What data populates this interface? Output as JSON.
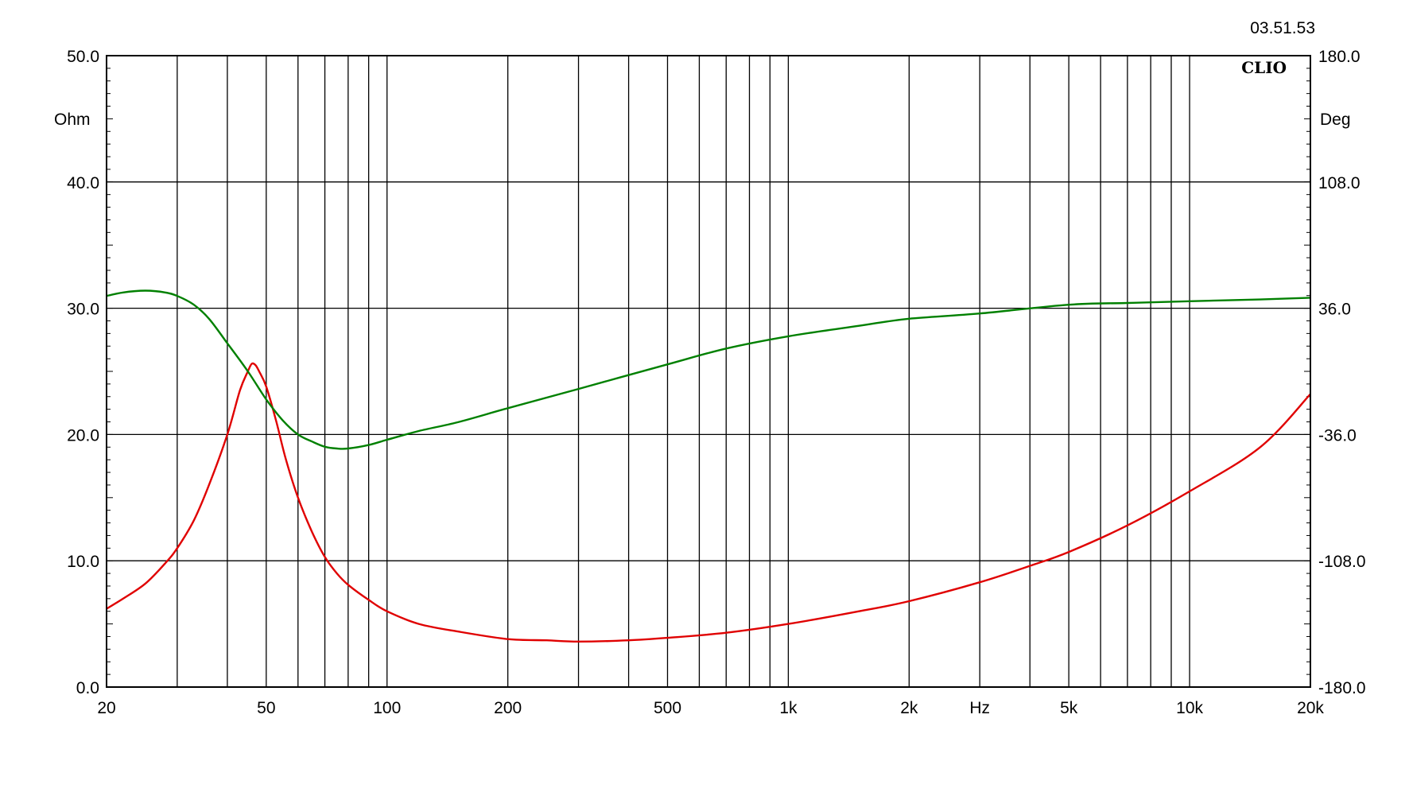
{
  "timestamp": "03.51.53",
  "logo": "CLIO",
  "chart_data": {
    "type": "line",
    "x_scale": "log",
    "xlim": [
      20,
      20000
    ],
    "xticks": [
      {
        "value": 20,
        "label": "20"
      },
      {
        "value": 50,
        "label": "50"
      },
      {
        "value": 100,
        "label": "100"
      },
      {
        "value": 200,
        "label": "200"
      },
      {
        "value": 500,
        "label": "500"
      },
      {
        "value": 1000,
        "label": "1k"
      },
      {
        "value": 2000,
        "label": "2k"
      },
      {
        "value": 5000,
        "label": "5k"
      },
      {
        "value": 10000,
        "label": "10k"
      },
      {
        "value": 20000,
        "label": "20k"
      }
    ],
    "x_unit_label": "Hz",
    "x_unit_value": 3000,
    "left_axis": {
      "unit": "Ohm",
      "ylim": [
        0,
        50
      ],
      "ticks": [
        "0.0",
        "10.0",
        "20.0",
        "30.0",
        "40.0",
        "50.0"
      ]
    },
    "right_axis": {
      "unit": "Deg",
      "ylim": [
        -180,
        180
      ],
      "ticks": [
        "-180.0",
        "-108.0",
        "-36.0",
        "36.0",
        "108.0",
        "180.0"
      ]
    },
    "grid": true,
    "series": [
      {
        "axis": "left",
        "color": "#e00000",
        "points": [
          [
            20,
            6.2
          ],
          [
            22,
            7.0
          ],
          [
            25,
            8.2
          ],
          [
            28,
            9.8
          ],
          [
            30,
            11.0
          ],
          [
            33,
            13.2
          ],
          [
            36,
            16.0
          ],
          [
            40,
            20.0
          ],
          [
            43,
            23.5
          ],
          [
            45,
            25.0
          ],
          [
            46,
            25.6
          ],
          [
            47,
            25.5
          ],
          [
            48,
            25.0
          ],
          [
            50,
            23.8
          ],
          [
            53,
            21.0
          ],
          [
            56,
            18.0
          ],
          [
            60,
            15.0
          ],
          [
            65,
            12.3
          ],
          [
            70,
            10.3
          ],
          [
            75,
            9.0
          ],
          [
            80,
            8.1
          ],
          [
            90,
            6.9
          ],
          [
            100,
            6.0
          ],
          [
            120,
            5.0
          ],
          [
            150,
            4.4
          ],
          [
            200,
            3.8
          ],
          [
            250,
            3.7
          ],
          [
            300,
            3.6
          ],
          [
            400,
            3.7
          ],
          [
            500,
            3.9
          ],
          [
            700,
            4.3
          ],
          [
            1000,
            5.0
          ],
          [
            1500,
            6.0
          ],
          [
            2000,
            6.8
          ],
          [
            3000,
            8.3
          ],
          [
            4000,
            9.6
          ],
          [
            5000,
            10.7
          ],
          [
            7000,
            12.8
          ],
          [
            10000,
            15.5
          ],
          [
            15000,
            19.0
          ],
          [
            20000,
            23.2
          ]
        ]
      },
      {
        "axis": "right",
        "color": "#008000",
        "points": [
          [
            20,
            43
          ],
          [
            22,
            45
          ],
          [
            25,
            46
          ],
          [
            28,
            45
          ],
          [
            30,
            43
          ],
          [
            33,
            38
          ],
          [
            36,
            30
          ],
          [
            40,
            16
          ],
          [
            45,
            0
          ],
          [
            50,
            -16
          ],
          [
            55,
            -28
          ],
          [
            60,
            -36
          ],
          [
            65,
            -40
          ],
          [
            70,
            -43
          ],
          [
            75,
            -44
          ],
          [
            80,
            -44
          ],
          [
            90,
            -42
          ],
          [
            100,
            -39
          ],
          [
            120,
            -34
          ],
          [
            150,
            -29
          ],
          [
            200,
            -21
          ],
          [
            300,
            -10
          ],
          [
            500,
            4
          ],
          [
            700,
            13
          ],
          [
            1000,
            20
          ],
          [
            1500,
            26
          ],
          [
            2000,
            30
          ],
          [
            3000,
            33
          ],
          [
            5000,
            38
          ],
          [
            7000,
            39
          ],
          [
            10000,
            40
          ],
          [
            15000,
            41
          ],
          [
            20000,
            42
          ]
        ]
      }
    ]
  }
}
